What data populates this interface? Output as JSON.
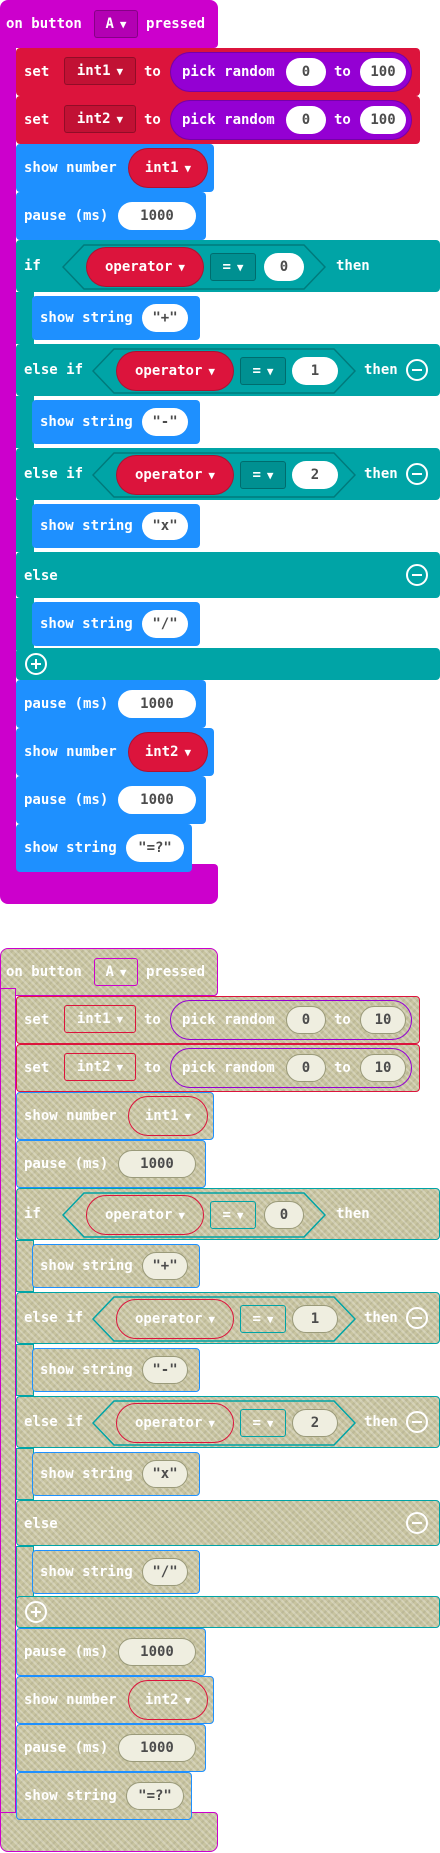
{
  "program": {
    "event": {
      "prefix": "on button",
      "button": "A",
      "suffix": "pressed"
    },
    "set1": {
      "keyword": "set",
      "variable": "int1",
      "to": "to",
      "random_label": "pick random",
      "from": "0",
      "to_word": "to",
      "max_enabled": "100",
      "max_disabled": "10"
    },
    "set2": {
      "keyword": "set",
      "variable": "int2",
      "to": "to",
      "random_label": "pick random",
      "from": "0",
      "to_word": "to",
      "max_enabled": "100",
      "max_disabled": "10"
    },
    "show_int1": {
      "label": "show number",
      "variable": "int1"
    },
    "pause1": {
      "label": "pause (ms)",
      "value": "1000"
    },
    "if": {
      "label": "if",
      "variable": "operator",
      "op": "=",
      "value": "0",
      "then": "then"
    },
    "show_plus": {
      "label": "show string",
      "value": "\"+\""
    },
    "elseif1": {
      "label": "else if",
      "variable": "operator",
      "op": "=",
      "value": "1",
      "then": "then"
    },
    "show_minus": {
      "label": "show string",
      "value": "\"-\""
    },
    "elseif2": {
      "label": "else if",
      "variable": "operator",
      "op": "=",
      "value": "2",
      "then": "then"
    },
    "show_times": {
      "label": "show string",
      "value": "\"x\""
    },
    "else": {
      "label": "else"
    },
    "show_div": {
      "label": "show string",
      "value": "\"/\""
    },
    "pause2": {
      "label": "pause (ms)",
      "value": "1000"
    },
    "show_int2": {
      "label": "show number",
      "variable": "int2"
    },
    "pause3": {
      "label": "pause (ms)",
      "value": "1000"
    },
    "show_eq": {
      "label": "show string",
      "value": "\"=?\""
    }
  },
  "colors": {
    "event": "#cc00cc",
    "variables": "#dc143c",
    "math": "#9400d3",
    "basic": "#1e90ff",
    "logic": "#00a4a6",
    "disabled_fill": "#c8c4a0"
  },
  "icons": {
    "dropdown": "caret-down-icon",
    "remove_branch": "minus-circle-icon",
    "add_branch": "plus-circle-icon"
  }
}
